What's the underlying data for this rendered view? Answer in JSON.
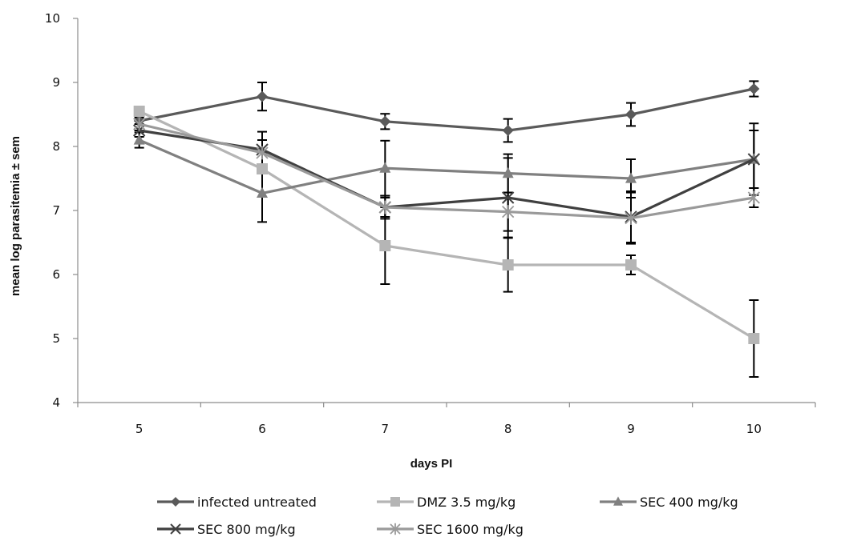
{
  "chart_data": {
    "type": "line",
    "xlabel": "days PI",
    "ylabel": "mean log parasitemia ± sem",
    "x": [
      5,
      6,
      7,
      8,
      9,
      10
    ],
    "x_tick_labels": [
      "5",
      "6",
      "7",
      "8",
      "9",
      "10"
    ],
    "xlim": [
      4.5,
      10.5
    ],
    "ylim": [
      4,
      10
    ],
    "y_ticks": [
      4,
      5,
      6,
      7,
      8,
      9,
      10
    ],
    "y_tick_labels": [
      "4",
      "5",
      "6",
      "7",
      "8",
      "9",
      "10"
    ],
    "grid": false,
    "legend_position": "bottom",
    "series": [
      {
        "name": "infected untreated",
        "color": "#5a5a5a",
        "marker": "diamond",
        "values": [
          8.4,
          8.78,
          8.39,
          8.25,
          8.5,
          8.9
        ],
        "errors": [
          0.15,
          0.22,
          0.12,
          0.18,
          0.18,
          0.12
        ]
      },
      {
        "name": "DMZ 3.5 mg/kg",
        "color": "#b5b5b5",
        "marker": "square",
        "values": [
          8.55,
          7.65,
          6.45,
          6.15,
          6.15,
          5.0
        ],
        "errors": [
          0.0,
          0.0,
          0.6,
          0.42,
          0.15,
          0.6
        ]
      },
      {
        "name": "SEC 400 mg/kg",
        "color": "#808080",
        "marker": "triangle",
        "values": [
          8.1,
          7.27,
          7.66,
          7.58,
          7.5,
          7.8
        ],
        "errors": [
          0.12,
          0.45,
          0.43,
          0.3,
          0.3,
          0.56
        ]
      },
      {
        "name": "SEC 800 mg/kg",
        "color": "#404040",
        "marker": "x",
        "values": [
          8.25,
          7.95,
          7.05,
          7.2,
          6.9,
          7.8
        ],
        "errors": [
          0.1,
          0.28,
          0.15,
          0.62,
          0.4,
          0.45
        ]
      },
      {
        "name": "SEC 1600 mg/kg",
        "color": "#9a9a9a",
        "marker": "star",
        "values": [
          8.35,
          7.9,
          7.05,
          6.98,
          6.88,
          7.2
        ],
        "errors": [
          0.1,
          0.2,
          0.18,
          0.3,
          0.4,
          0.15
        ]
      }
    ]
  }
}
